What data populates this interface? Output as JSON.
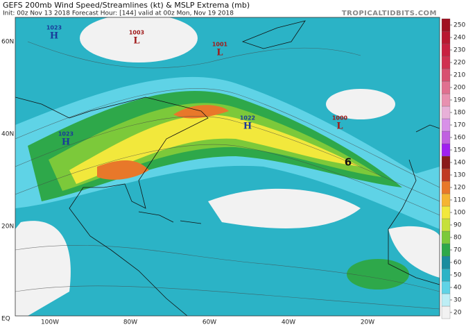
{
  "header": {
    "title": "GEFS 200mb Wind Speed/Streamlines (kt) & MSLP Extrema (mb)",
    "subtitle": "Init: 00z Nov 13 2018   Forecast Hour: [144]   valid at 00z Mon, Nov 19 2018",
    "watermark": "TROPICALTIDBITS.COM"
  },
  "map": {
    "lat_labels": [
      "60N",
      "40N",
      "20N",
      "EQ"
    ],
    "lon_labels": [
      "100W",
      "80W",
      "60W",
      "40W",
      "20W"
    ],
    "pressure_centers": [
      {
        "value": "1023",
        "letter": "H"
      },
      {
        "value": "1003",
        "letter": "L"
      },
      {
        "value": "1001",
        "letter": "L"
      },
      {
        "value": "1022",
        "letter": "H"
      },
      {
        "value": "1023",
        "letter": "H"
      },
      {
        "value": "1000",
        "letter": "L"
      }
    ],
    "annotation": "6"
  },
  "colorbar": {
    "ticks": [
      20,
      30,
      40,
      50,
      60,
      70,
      80,
      90,
      100,
      110,
      120,
      130,
      140,
      150,
      160,
      170,
      180,
      190,
      200,
      210,
      220,
      230,
      240,
      250
    ],
    "colors": [
      "#f2f2f2",
      "#bdeef5",
      "#5fd3e6",
      "#2bb3c6",
      "#1a8c9e",
      "#2ea84a",
      "#7cc93a",
      "#c6e03a",
      "#f2e83c",
      "#f5b431",
      "#e8782a",
      "#c03a22",
      "#8a1a1a",
      "#a020f0",
      "#c060e0",
      "#d890e8",
      "#e8b0d8",
      "#e890b0",
      "#e07090",
      "#d85070",
      "#d03050",
      "#c82040",
      "#b81830",
      "#a01020"
    ]
  }
}
